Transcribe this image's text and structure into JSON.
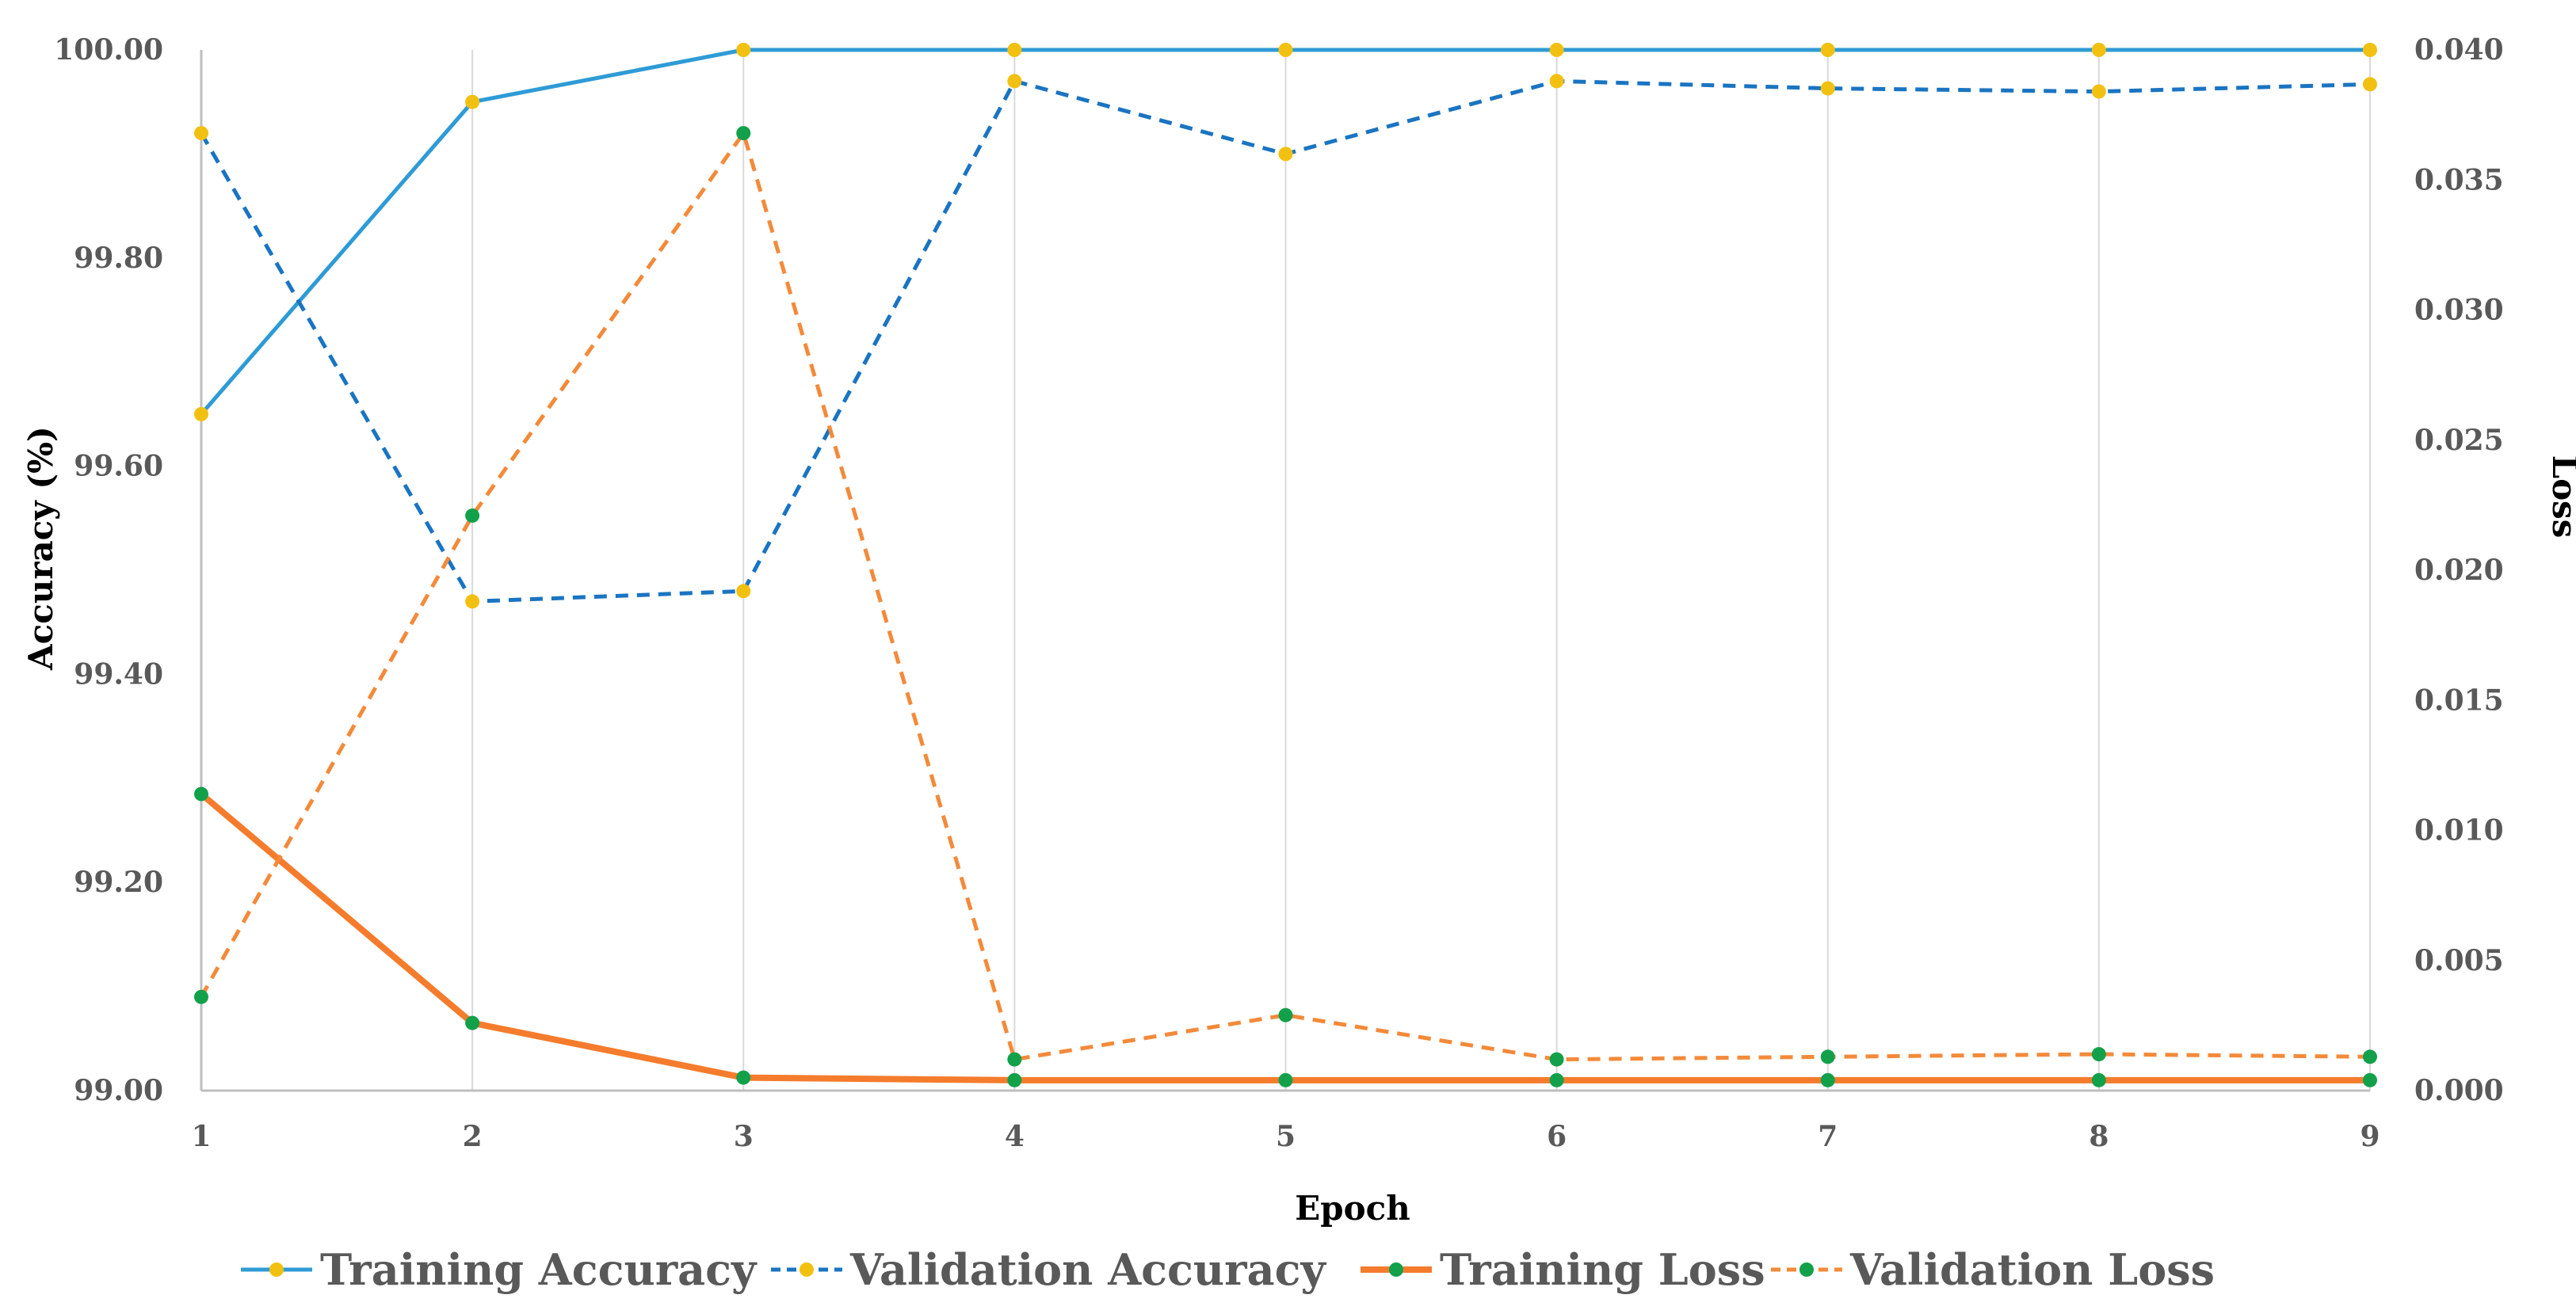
{
  "chart_data": {
    "type": "line",
    "title": "",
    "xlabel": "Epoch",
    "ylabel": "Accuracy (%)",
    "y2label": "Loss",
    "x": [
      1,
      2,
      3,
      4,
      5,
      6,
      7,
      8,
      9
    ],
    "x_tick_labels": [
      "1",
      "2",
      "3",
      "4",
      "5",
      "6",
      "7",
      "8",
      "9"
    ],
    "ylim": [
      99.0,
      100.0
    ],
    "y_ticks": [
      99.0,
      99.2,
      99.4,
      99.6,
      99.8,
      100.0
    ],
    "y_tick_labels": [
      "99.00",
      "99.20",
      "99.40",
      "99.60",
      "99.80",
      "100.00"
    ],
    "y2lim": [
      0.0,
      0.04
    ],
    "y2_ticks": [
      0.0,
      0.005,
      0.01,
      0.015,
      0.02,
      0.025,
      0.03,
      0.035,
      0.04
    ],
    "y2_tick_labels": [
      "0.000",
      "0.005",
      "0.010",
      "0.015",
      "0.020",
      "0.025",
      "0.030",
      "0.035",
      "0.040"
    ],
    "grid": "vertical",
    "legend_position": "bottom",
    "series": [
      {
        "name": "Training Accuracy",
        "axis": "left",
        "values": [
          99.65,
          99.95,
          100.0,
          100.0,
          100.0,
          100.0,
          100.0,
          100.0,
          100.0
        ],
        "line_color": "#2e9bd6",
        "marker_color": "#f2c010",
        "dashed": false
      },
      {
        "name": "Validation Accuracy",
        "axis": "left",
        "values": [
          99.92,
          99.47,
          99.48,
          99.97,
          99.9,
          99.97,
          99.963,
          99.96,
          99.967
        ],
        "line_color": "#1a74c2",
        "marker_color": "#f2c010",
        "dashed": true
      },
      {
        "name": "Training Loss",
        "axis": "right",
        "values": [
          0.0114,
          0.0026,
          0.0005,
          0.0004,
          0.0004,
          0.0004,
          0.0004,
          0.0004,
          0.0004
        ],
        "line_color": "#f47c2c",
        "marker_color": "#12a14a",
        "dashed": false
      },
      {
        "name": "Validation Loss",
        "axis": "right",
        "values": [
          0.0036,
          0.0221,
          0.0368,
          0.0012,
          0.0029,
          0.0012,
          0.0013,
          0.0014,
          0.0013
        ],
        "line_color": "#f38a3a",
        "marker_color": "#12a14a",
        "dashed": true
      }
    ]
  }
}
